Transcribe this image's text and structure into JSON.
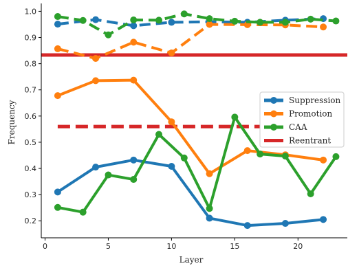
{
  "chart_data": {
    "type": "line",
    "xlabel": "Layer",
    "ylabel": "Frequency",
    "xlim": [
      -0.3,
      23.9
    ],
    "ylim": [
      0.135,
      1.03
    ],
    "x_ticks": [
      0,
      5,
      10,
      15,
      20
    ],
    "y_ticks": [
      0.2,
      0.3,
      0.4,
      0.5,
      0.6,
      0.7,
      0.8,
      0.9,
      1.0
    ],
    "legend_position": "center-right",
    "series": [
      {
        "name": "Suppression",
        "color": "#1f77b4",
        "style": "solid",
        "x": [
          1,
          4,
          7,
          10,
          13,
          16,
          19,
          22
        ],
        "y": [
          0.31,
          0.405,
          0.432,
          0.408,
          0.21,
          0.182,
          0.19,
          0.205
        ]
      },
      {
        "name": "Promotion",
        "color": "#ff7f0e",
        "style": "solid",
        "x": [
          1,
          4,
          7,
          10,
          13,
          16,
          19,
          22
        ],
        "y": [
          0.678,
          0.735,
          0.737,
          0.578,
          0.38,
          0.468,
          0.452,
          0.432
        ]
      },
      {
        "name": "CAA",
        "color": "#2ca02c",
        "style": "solid",
        "x": [
          1,
          3,
          5,
          7,
          9,
          11,
          13,
          15,
          17,
          19,
          21,
          23
        ],
        "y": [
          0.251,
          0.233,
          0.375,
          0.358,
          0.53,
          0.44,
          0.247,
          0.596,
          0.455,
          0.447,
          0.303,
          0.445
        ]
      },
      {
        "name": "",
        "color": "#1f77b4",
        "style": "dashed",
        "x": [
          1,
          4,
          7,
          10,
          13,
          16,
          19,
          22
        ],
        "y": [
          0.951,
          0.968,
          0.945,
          0.958,
          0.96,
          0.958,
          0.966,
          0.972
        ]
      },
      {
        "name": "",
        "color": "#ff7f0e",
        "style": "dashed",
        "x": [
          1,
          4,
          7,
          10,
          13,
          16,
          19,
          22
        ],
        "y": [
          0.857,
          0.82,
          0.882,
          0.841,
          0.95,
          0.949,
          0.948,
          0.94
        ]
      },
      {
        "name": "",
        "color": "#2ca02c",
        "style": "dashed",
        "x": [
          1,
          3,
          5,
          7,
          9,
          11,
          13,
          15,
          17,
          19,
          21,
          23
        ],
        "y": [
          0.98,
          0.965,
          0.91,
          0.967,
          0.966,
          0.99,
          0.972,
          0.962,
          0.958,
          0.958,
          0.97,
          0.963
        ]
      }
    ],
    "reference_lines": [
      {
        "name": "Reentrant",
        "color": "#d62728",
        "style": "solid",
        "y": 0.833,
        "x_from": -0.3,
        "x_to": 23.9
      },
      {
        "name": "",
        "color": "#d62728",
        "style": "dashed",
        "y": 0.56,
        "x_from": 1,
        "x_to": 17
      }
    ],
    "legend": [
      "Suppression",
      "Promotion",
      "CAA",
      "Reentrant"
    ]
  }
}
